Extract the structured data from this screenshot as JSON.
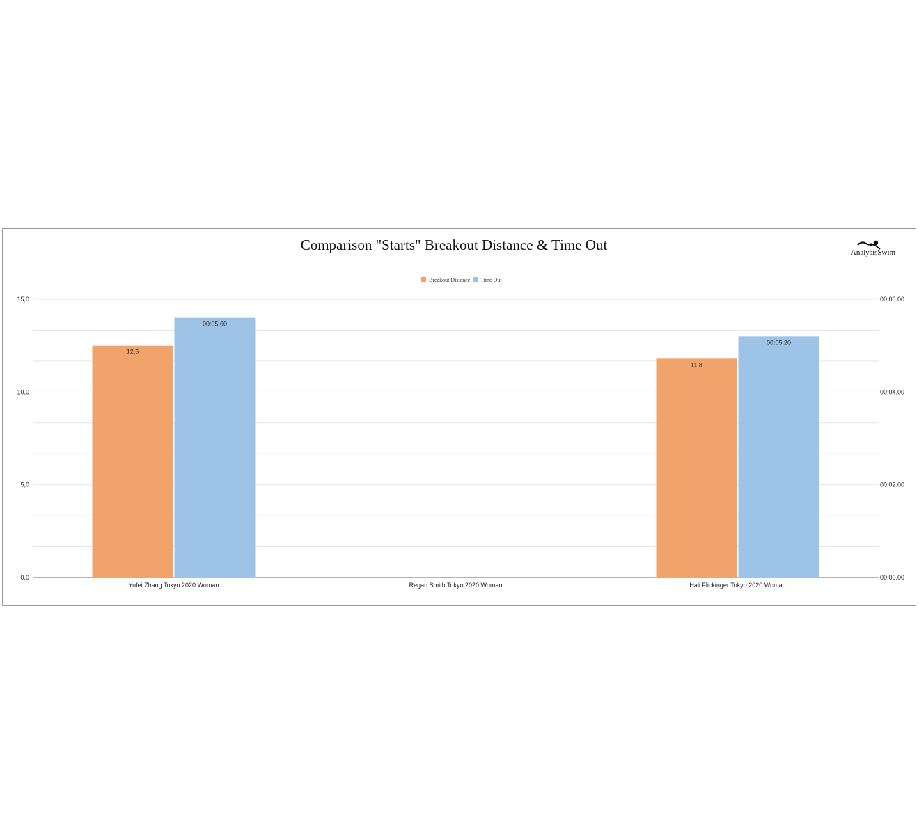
{
  "chart_data": {
    "type": "bar",
    "title": "Comparison \"Starts\" Breakout Distance & Time Out",
    "categories": [
      "Yufei Zhang Tokyo 2020 Woman",
      "Regan Smith Tokyo 2020 Woman",
      "Hali Flickinger Tokyo 2020 Woman"
    ],
    "series": [
      {
        "name": "Breakout Distance",
        "axis": "left",
        "color": "#f0a46c",
        "values": [
          12.5,
          null,
          11.8
        ],
        "labels": [
          "12,5",
          "",
          "11,8"
        ]
      },
      {
        "name": "Time Out",
        "axis": "right",
        "color": "#9dc3e6",
        "values": [
          5.6,
          null,
          5.2
        ],
        "labels": [
          "00:05.60",
          "",
          "00:05.20"
        ]
      }
    ],
    "left_axis": {
      "ylim": [
        0,
        15
      ],
      "ticks": [
        0,
        5,
        10,
        15
      ],
      "tick_labels": [
        "0,0",
        "5,0",
        "10,0",
        "15,0"
      ]
    },
    "right_axis": {
      "ylim": [
        0,
        6
      ],
      "ticks": [
        0,
        2,
        4,
        6
      ],
      "tick_labels": [
        "00:00.00",
        "00:02.00",
        "00:04.00",
        "00:06.00"
      ]
    },
    "grid": true,
    "legend_position": "top-center"
  },
  "logo": {
    "text": "AnalysisSwim",
    "icon": "swimmer-icon"
  }
}
